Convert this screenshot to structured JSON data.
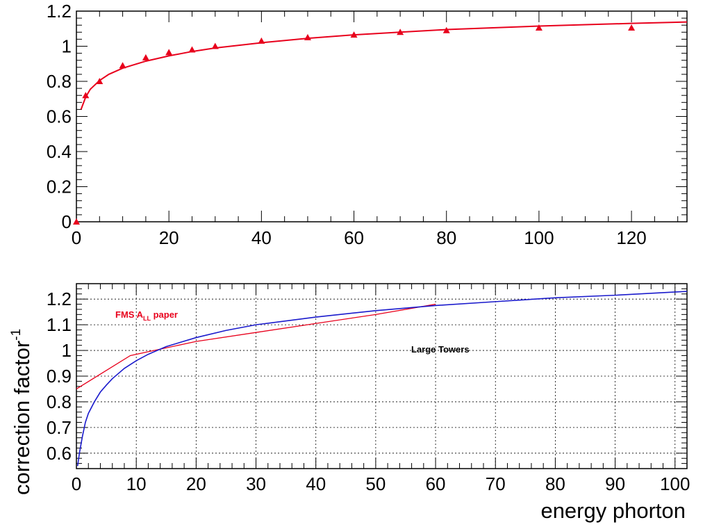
{
  "chart_data": [
    {
      "type": "scatter",
      "title": "",
      "xlabel": "",
      "ylabel": "",
      "xlim": [
        0,
        132
      ],
      "ylim": [
        0,
        1.2
      ],
      "xticks": [
        "0",
        "20",
        "40",
        "60",
        "80",
        "100",
        "120"
      ],
      "yticks": [
        "0",
        "0.2",
        "0.4",
        "0.6",
        "0.8",
        "1",
        "1.2"
      ],
      "grid": false,
      "colors": {
        "series": "#e8001c"
      },
      "series": [
        {
          "kind": "points",
          "marker": "triangle",
          "x": [
            0,
            2,
            5,
            10,
            15,
            20,
            25,
            30,
            40,
            50,
            60,
            70,
            80,
            100,
            120
          ],
          "y": [
            0,
            0.72,
            0.8,
            0.89,
            0.935,
            0.965,
            0.98,
            1.0,
            1.03,
            1.05,
            1.065,
            1.08,
            1.09,
            1.105,
            1.105
          ]
        },
        {
          "kind": "fit-line",
          "x": [
            1,
            2,
            3,
            5,
            7,
            10,
            15,
            20,
            25,
            30,
            40,
            50,
            60,
            70,
            80,
            90,
            100,
            110,
            120,
            132
          ],
          "y": [
            0.64,
            0.71,
            0.755,
            0.805,
            0.84,
            0.875,
            0.915,
            0.945,
            0.97,
            0.99,
            1.02,
            1.045,
            1.065,
            1.08,
            1.095,
            1.105,
            1.115,
            1.123,
            1.13,
            1.138
          ]
        }
      ]
    },
    {
      "type": "line",
      "title": "",
      "xlabel": "energy phorton",
      "ylabel": "correction factor",
      "ylabel_sup": "-1",
      "xlim": [
        0,
        102
      ],
      "ylim": [
        0.54,
        1.26
      ],
      "xticks": [
        "0",
        "10",
        "20",
        "30",
        "40",
        "50",
        "60",
        "70",
        "80",
        "90",
        "100"
      ],
      "yticks": [
        "0.6",
        "0.7",
        "0.8",
        "0.9",
        "1",
        "1.1",
        "1.2"
      ],
      "grid": true,
      "annotations": [
        {
          "text": "FMS A",
          "sub": "LL",
          "suffix": " paper",
          "color": "#e8001c"
        },
        {
          "text": "Large Towers",
          "color": "#000000"
        }
      ],
      "series": [
        {
          "color": "#e8001c",
          "x": [
            0,
            9,
            12,
            20,
            30,
            40,
            50,
            60
          ],
          "y": [
            0.85,
            0.98,
            0.995,
            1.035,
            1.07,
            1.105,
            1.14,
            1.18
          ]
        },
        {
          "color": "#1a1acc",
          "x": [
            0.2,
            0.5,
            1,
            1.5,
            2,
            3,
            4,
            5,
            6,
            7,
            8,
            10,
            12,
            15,
            20,
            25,
            30,
            40,
            50,
            60,
            70,
            80,
            90,
            102
          ],
          "y": [
            0.55,
            0.6,
            0.665,
            0.72,
            0.755,
            0.8,
            0.838,
            0.865,
            0.89,
            0.91,
            0.93,
            0.96,
            0.985,
            1.015,
            1.05,
            1.078,
            1.1,
            1.13,
            1.155,
            1.175,
            1.19,
            1.205,
            1.215,
            1.23
          ]
        }
      ]
    }
  ]
}
